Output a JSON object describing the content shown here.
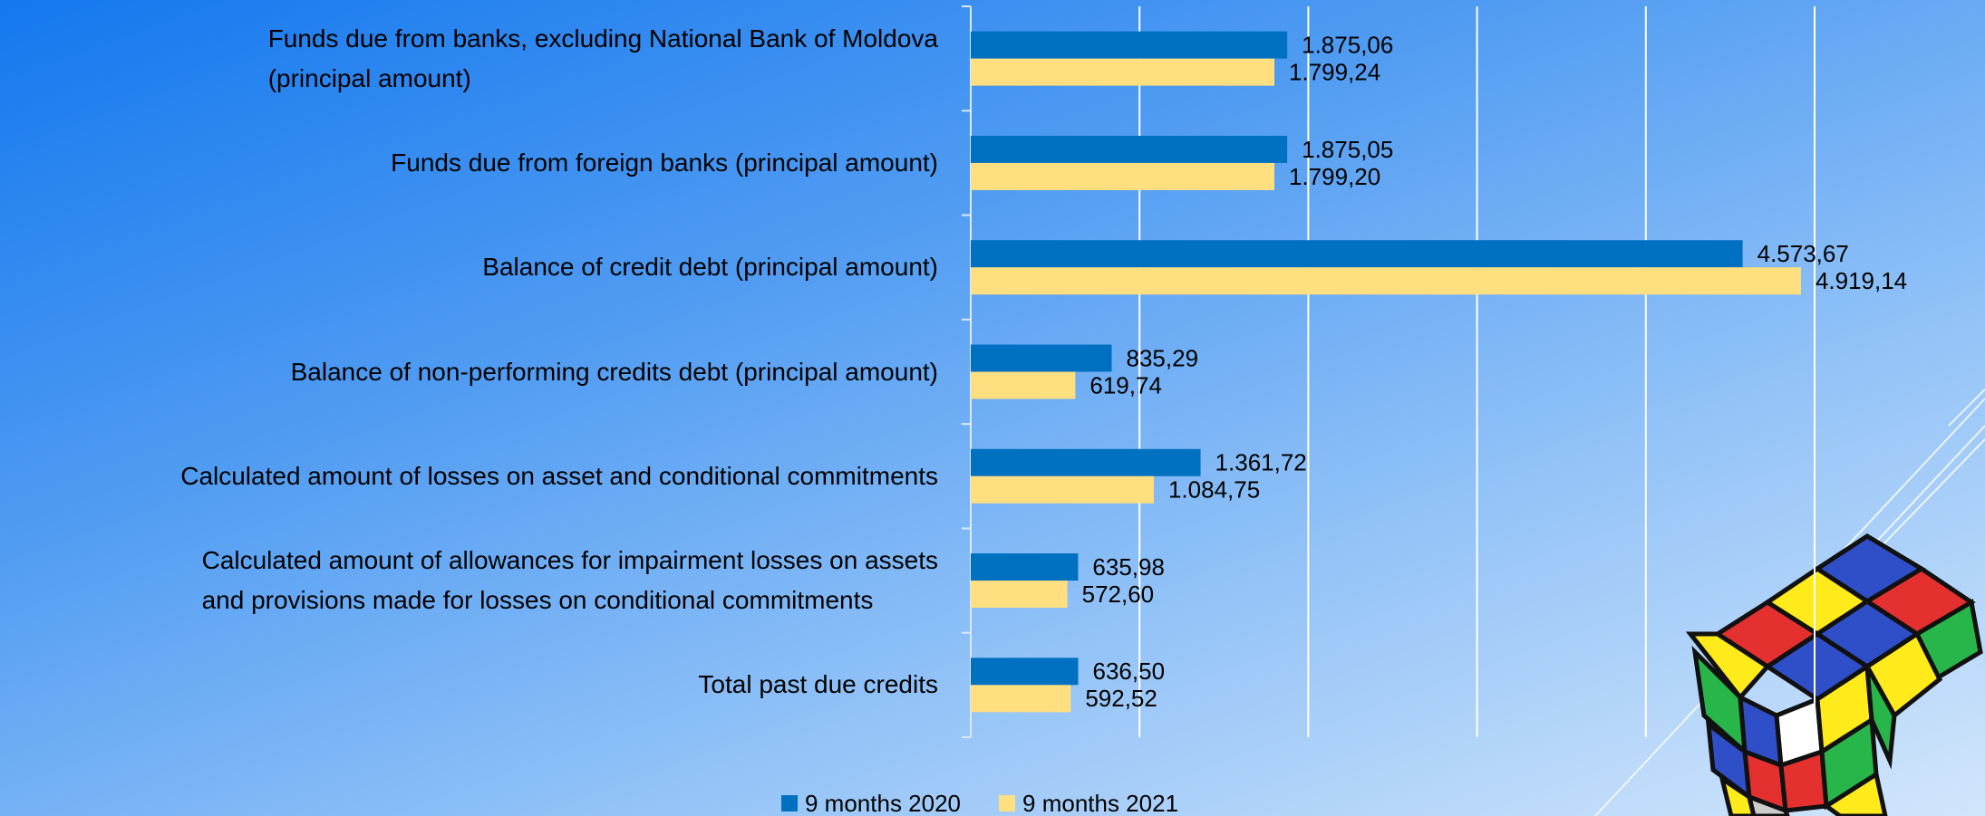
{
  "chart_data": {
    "type": "hbar",
    "categories": [
      "Funds due from banks, excluding National Bank of Moldova\n(principal amount)",
      "Funds due from foreign banks (principal amount)",
      "Balance of credit debt (principal amount)",
      "Balance of non-performing credits debt (principal amount)",
      "Calculated amount of losses on asset and conditional commitments",
      "Calculated amount of allowances for impairment losses on assets\nand provisions made for losses on conditional commitments",
      "Total past due credits"
    ],
    "series": [
      {
        "name": "9 months 2020",
        "color": "#0070c0",
        "values": [
          1875.06,
          1875.05,
          4573.67,
          835.29,
          1361.72,
          635.98,
          636.5
        ],
        "value_labels": [
          "1.875,06",
          "1.875,05",
          "4.573,67",
          "835,29",
          "1.361,72",
          "635,98",
          "636,50"
        ]
      },
      {
        "name": "9 months 2021",
        "color": "#ffdf7f",
        "values": [
          1799.24,
          1799.2,
          4919.14,
          619.74,
          1084.75,
          572.6,
          592.52
        ],
        "value_labels": [
          "1.799,24",
          "1.799,20",
          "4.919,14",
          "619,74",
          "1.084,75",
          "572,60",
          "592,52"
        ]
      }
    ],
    "xlim": [
      0,
      5000
    ],
    "xticks": [
      0,
      1000,
      2000,
      3000,
      4000,
      5000
    ],
    "grid": true,
    "legend": "bottom"
  }
}
